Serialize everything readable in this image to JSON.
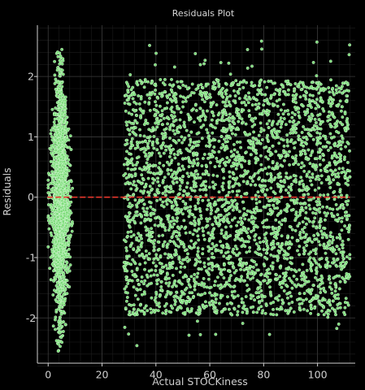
{
  "chart_data": {
    "type": "scatter",
    "title": "Residuals Plot",
    "xlabel": "Actual STOCKiness",
    "ylabel": "Residuals",
    "xlim": [
      -4,
      114
    ],
    "ylim": [
      -2.75,
      2.85
    ],
    "x_ticks": [
      0,
      20,
      40,
      60,
      80,
      100
    ],
    "y_ticks": [
      -2,
      -1,
      0,
      1,
      2
    ],
    "grid": true,
    "reference_line": {
      "y": 0,
      "color": "#e8372c",
      "style": "dashed"
    },
    "point_color": "#7ddc7a",
    "point_edge_color": "#ffffff",
    "clusters": [
      {
        "name": "",
        "x_range": [
          0,
          9
        ],
        "x_center": 4.5,
        "y_range": [
          -2.6,
          2.45
        ],
        "approx_points": 1800
      },
      {
        "name": "",
        "x_range": [
          28,
          112
        ],
        "y_range": [
          -2.55,
          2.6
        ],
        "approx_points": 3500
      }
    ]
  }
}
